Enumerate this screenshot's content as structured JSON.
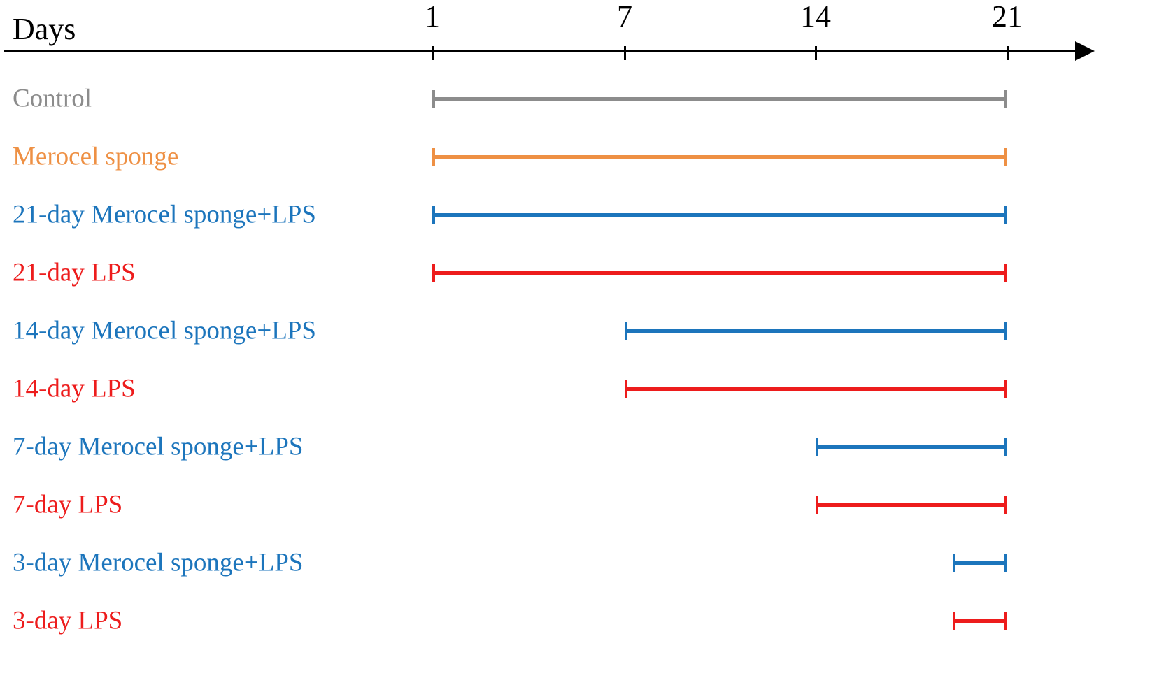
{
  "chart_data": {
    "type": "bar",
    "variant": "gantt-timeline",
    "xlabel": "Days",
    "xlim": [
      1,
      21
    ],
    "xticks": [
      1,
      7,
      14,
      21
    ],
    "axis_color": "#000000",
    "rows": [
      {
        "label": "Control",
        "start": 1,
        "end": 21,
        "color": "#8c8c8c"
      },
      {
        "label": "Merocel sponge",
        "start": 1,
        "end": 21,
        "color": "#ee9044"
      },
      {
        "label": "21-day Merocel sponge+LPS",
        "start": 1,
        "end": 21,
        "color": "#1c75bc"
      },
      {
        "label": "21-day LPS",
        "start": 1,
        "end": 21,
        "color": "#ed1c1c"
      },
      {
        "label": "14-day Merocel sponge+LPS",
        "start": 7,
        "end": 21,
        "color": "#1c75bc"
      },
      {
        "label": "14-day LPS",
        "start": 7,
        "end": 21,
        "color": "#ed1c1c"
      },
      {
        "label": "7-day Merocel sponge+LPS",
        "start": 14,
        "end": 21,
        "color": "#1c75bc"
      },
      {
        "label": "7-day LPS",
        "start": 14,
        "end": 21,
        "color": "#ed1c1c"
      },
      {
        "label": "3-day Merocel sponge+LPS",
        "start": 19,
        "end": 21,
        "color": "#1c75bc"
      },
      {
        "label": "3-day LPS",
        "start": 19,
        "end": 21,
        "color": "#ed1c1c"
      }
    ]
  }
}
